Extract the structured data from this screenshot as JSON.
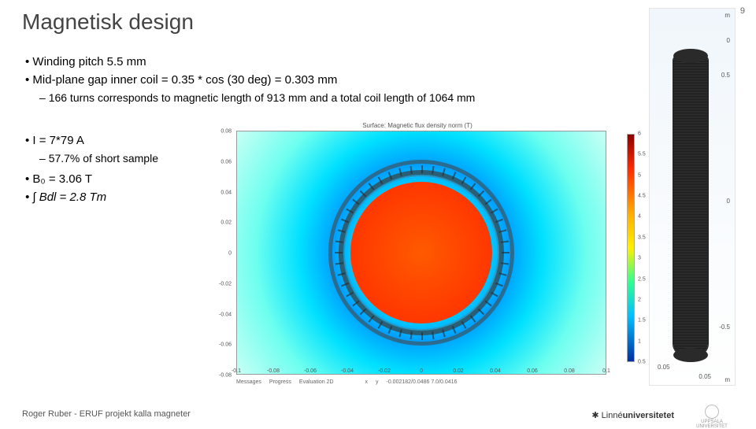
{
  "page_number": "9",
  "title": "Magnetisk design",
  "bullets": [
    {
      "text": "Winding pitch 5.5 mm"
    },
    {
      "text": "Mid-plane gap inner coil = 0.35 * cos (30 deg) = 0.303 mm",
      "sub": [
        "166 turns corresponds to magnetic length of 913 mm and a total coil length of 1064 mm"
      ]
    }
  ],
  "left_bullets": [
    {
      "text": "I = 7*79 A",
      "sub": [
        "57.7% of short sample"
      ]
    },
    {
      "text": "B₀ = 3.06 T"
    },
    {
      "text": "∫ Bdl = 2.8 Tm",
      "formula": true
    }
  ],
  "chart": {
    "title": "Surface: Magnetic flux density norm (T)",
    "type": "heatmap-radial",
    "x_ticks": [
      "-0.1",
      "-0.08",
      "-0.06",
      "-0.04",
      "-0.02",
      "0",
      "0.02",
      "0.04",
      "0.06",
      "0.08",
      "0.1"
    ],
    "y_ticks": [
      "0.08",
      "0.06",
      "0.04",
      "0.02",
      "0",
      "-0.02",
      "-0.04",
      "-0.06",
      "-0.08"
    ],
    "colorbar": {
      "labels": [
        "6",
        "5.5",
        "5",
        "4.5",
        "4",
        "3.5",
        "3",
        "2.5",
        "2",
        "1.5",
        "1",
        "0.5"
      ],
      "colors_top_to_bottom": [
        "#8b0000",
        "#ff2a00",
        "#ffae00",
        "#fff000",
        "#30ff90",
        "#00c0ff",
        "#0030a0"
      ]
    },
    "core_color": "#ff3c00",
    "ring_color": "#474747",
    "bg_gradient": [
      "#ff3000",
      "#00d0ff",
      "#00e0ff",
      "#6dffef",
      "#c9fff5"
    ]
  },
  "right3d": {
    "m_labels": [
      "0",
      "0.5",
      "0",
      "-0.5",
      "0.05",
      "0.05"
    ],
    "axis_unit": "m"
  },
  "status": {
    "tabs": [
      "Messages",
      "Progress",
      "Evaluation 2D"
    ],
    "cols": [
      "x",
      "y"
    ],
    "value": "-0.002182/0.0486  7.0/0.0416"
  },
  "footer": "Roger Ruber - ERUF projekt kalla magneter",
  "logo_text_plain": "Linné",
  "logo_text_bold": "universitetet",
  "uu_text": "UPPSALA UNIVERSITET"
}
